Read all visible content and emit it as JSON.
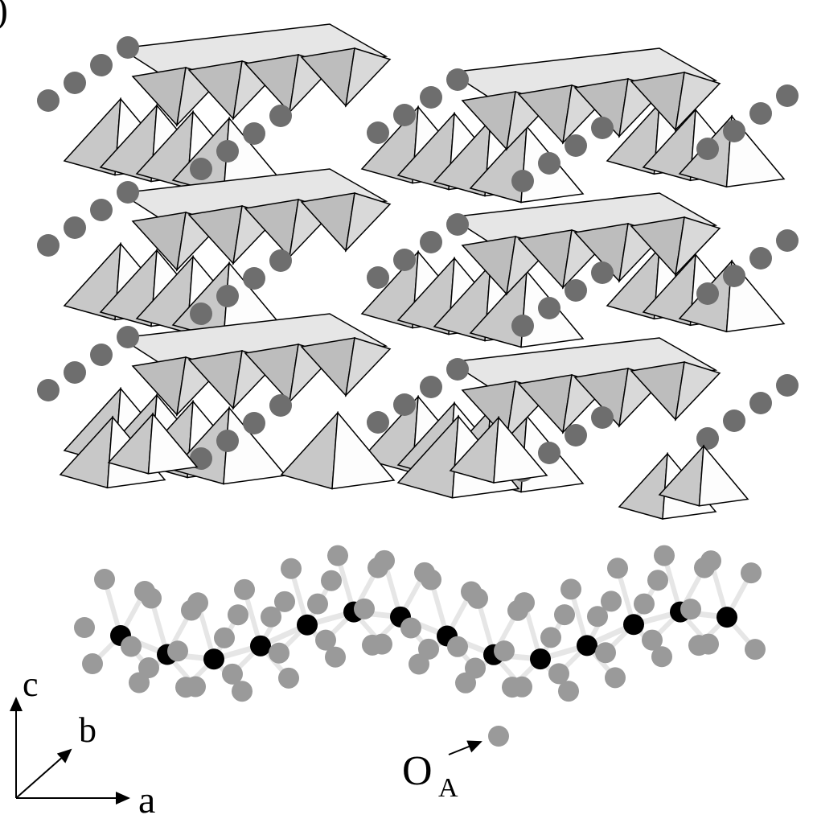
{
  "panel_mark": ")",
  "axes": {
    "c": "c",
    "b": "b",
    "a": "a"
  },
  "site_label": {
    "main": "O",
    "subscript": "A"
  }
}
